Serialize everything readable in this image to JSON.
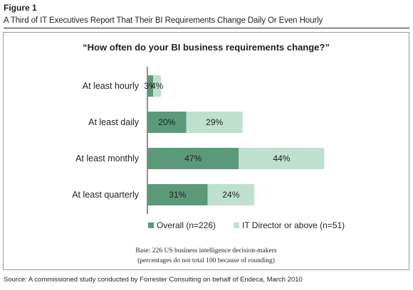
{
  "figure": {
    "label": "Figure 1",
    "title": "A Third of IT Executives Report That Their BI Requirements Change Daily Or Even Hourly"
  },
  "chart_data": {
    "type": "bar",
    "orientation": "horizontal",
    "stacked": true,
    "title": "“How often do your BI business requirements change?”",
    "categories": [
      "At least hourly",
      "At least daily",
      "At least monthly",
      "At least quarterly"
    ],
    "series": [
      {
        "name": "Overall (n=226)",
        "values": [
          3,
          20,
          47,
          31
        ],
        "color": "#5a9a78"
      },
      {
        "name": "IT Director or above (n=51)",
        "values": [
          4,
          29,
          44,
          24
        ],
        "color": "#bfe0cf"
      }
    ],
    "value_suffix": "%",
    "grid": false,
    "legend_position": "bottom"
  },
  "notes": {
    "base_line1": "Base: 226 US business intelligence decision-makers",
    "base_line2": "(percentages do not total 100 because of rounding)"
  },
  "source": "Source: A commissioned study conducted by Forrester Consulting on behalf of Endeca, March 2010"
}
